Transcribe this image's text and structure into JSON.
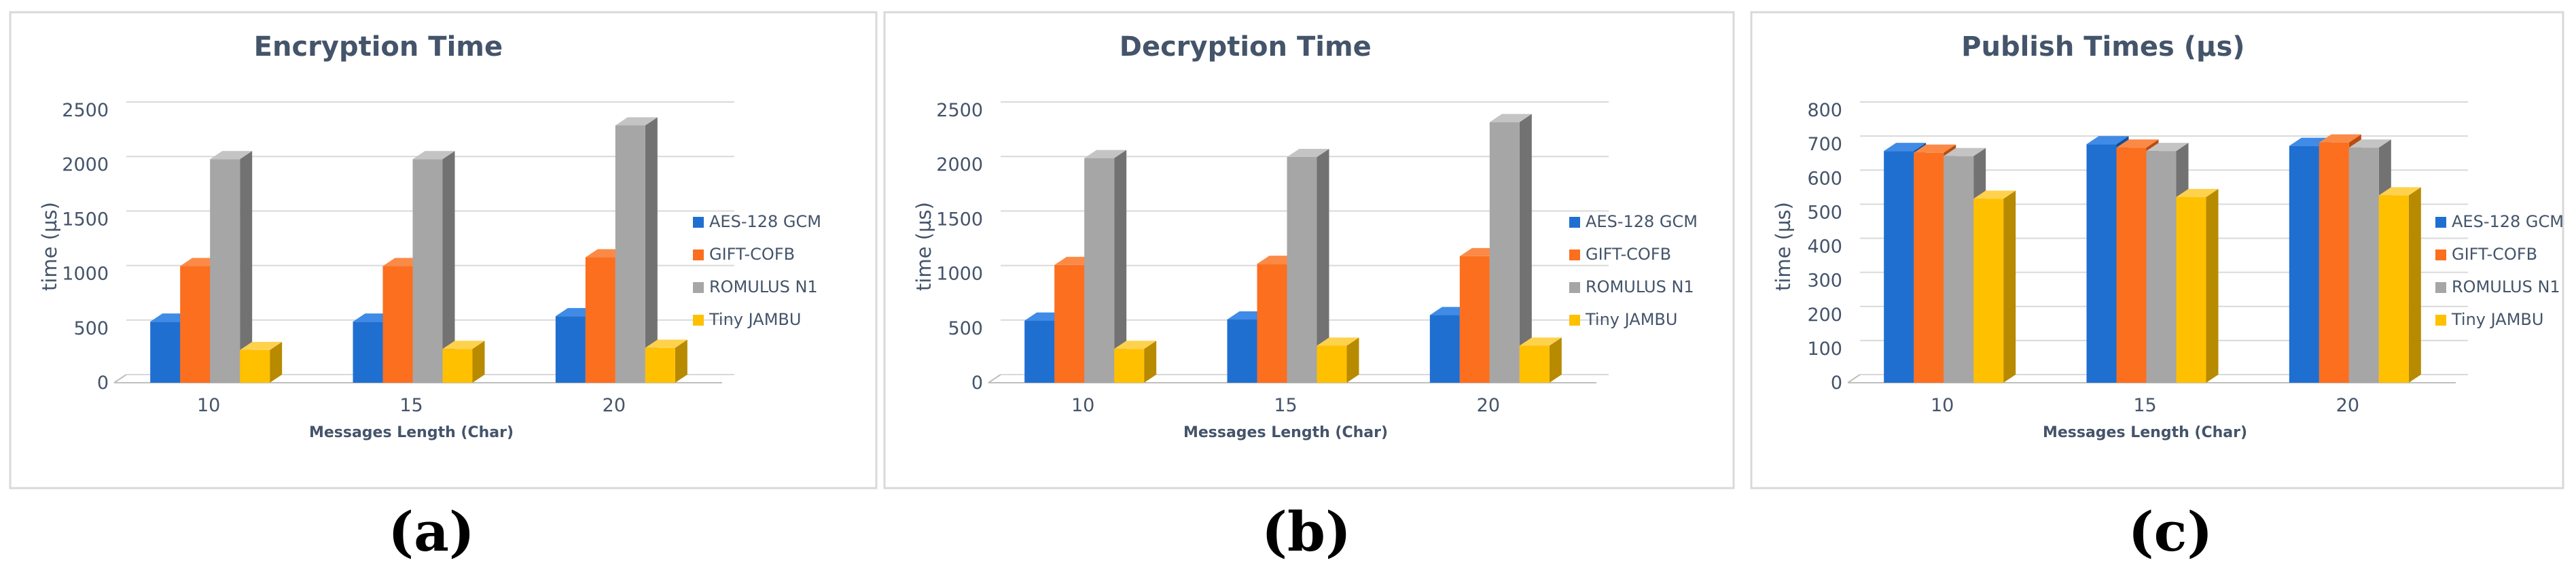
{
  "series_colors": {
    "AES-128 GCM": {
      "front": "#1f6fd1",
      "top": "#3f8be6",
      "side": "#154e96"
    },
    "GIFT-COFB": {
      "front": "#fb6f1f",
      "top": "#fb8a47",
      "side": "#b84c10"
    },
    "ROMULUS N1": {
      "front": "#a6a6a6",
      "top": "#c4c4c4",
      "side": "#727272"
    },
    "Tiny JAMBU": {
      "front": "#ffc000",
      "top": "#ffd24d",
      "side": "#b88a00"
    }
  },
  "chart_data": [
    {
      "type": "bar",
      "panel_label": "(a)",
      "title": "Encryption Time",
      "xlabel": "Messages Length (Char)",
      "ylabel": "time (µs)",
      "ylim": [
        0,
        2500
      ],
      "yticks": [
        0,
        500,
        1000,
        1500,
        2000,
        2500
      ],
      "categories": [
        "10",
        "15",
        "20"
      ],
      "grid": true,
      "legend_position": "right",
      "series": [
        {
          "name": "AES-128 GCM",
          "values": [
            560,
            560,
            610
          ]
        },
        {
          "name": "GIFT-COFB",
          "values": [
            1070,
            1070,
            1150
          ]
        },
        {
          "name": "ROMULUS N1",
          "values": [
            2050,
            2050,
            2360
          ]
        },
        {
          "name": "Tiny JAMBU",
          "values": [
            300,
            310,
            320
          ]
        }
      ]
    },
    {
      "type": "bar",
      "panel_label": "(b)",
      "title": "Decryption Time",
      "xlabel": "Messages Length (Char)",
      "ylabel": "time (µs)",
      "ylim": [
        0,
        2500
      ],
      "yticks": [
        0,
        500,
        1000,
        1500,
        2000,
        2500
      ],
      "categories": [
        "10",
        "15",
        "20"
      ],
      "grid": true,
      "legend_position": "right",
      "series": [
        {
          "name": "AES-128 GCM",
          "values": [
            570,
            580,
            620
          ]
        },
        {
          "name": "GIFT-COFB",
          "values": [
            1080,
            1090,
            1160
          ]
        },
        {
          "name": "ROMULUS N1",
          "values": [
            2060,
            2070,
            2390
          ]
        },
        {
          "name": "Tiny JAMBU",
          "values": [
            310,
            340,
            340
          ]
        }
      ]
    },
    {
      "type": "bar",
      "panel_label": "(c)",
      "title": "Publish Times (µs)",
      "xlabel": "Messages Length (Char)",
      "ylabel": "time (µs)",
      "ylim": [
        0,
        800
      ],
      "yticks": [
        0,
        100,
        200,
        300,
        400,
        500,
        600,
        700,
        800
      ],
      "categories": [
        "10",
        "15",
        "20"
      ],
      "grid": true,
      "legend_position": "right",
      "series": [
        {
          "name": "AES-128 GCM",
          "values": [
            680,
            700,
            695
          ]
        },
        {
          "name": "GIFT-COFB",
          "values": [
            675,
            690,
            705
          ]
        },
        {
          "name": "ROMULUS N1",
          "values": [
            665,
            680,
            690
          ]
        },
        {
          "name": "Tiny JAMBU",
          "values": [
            540,
            545,
            550
          ]
        }
      ]
    }
  ]
}
